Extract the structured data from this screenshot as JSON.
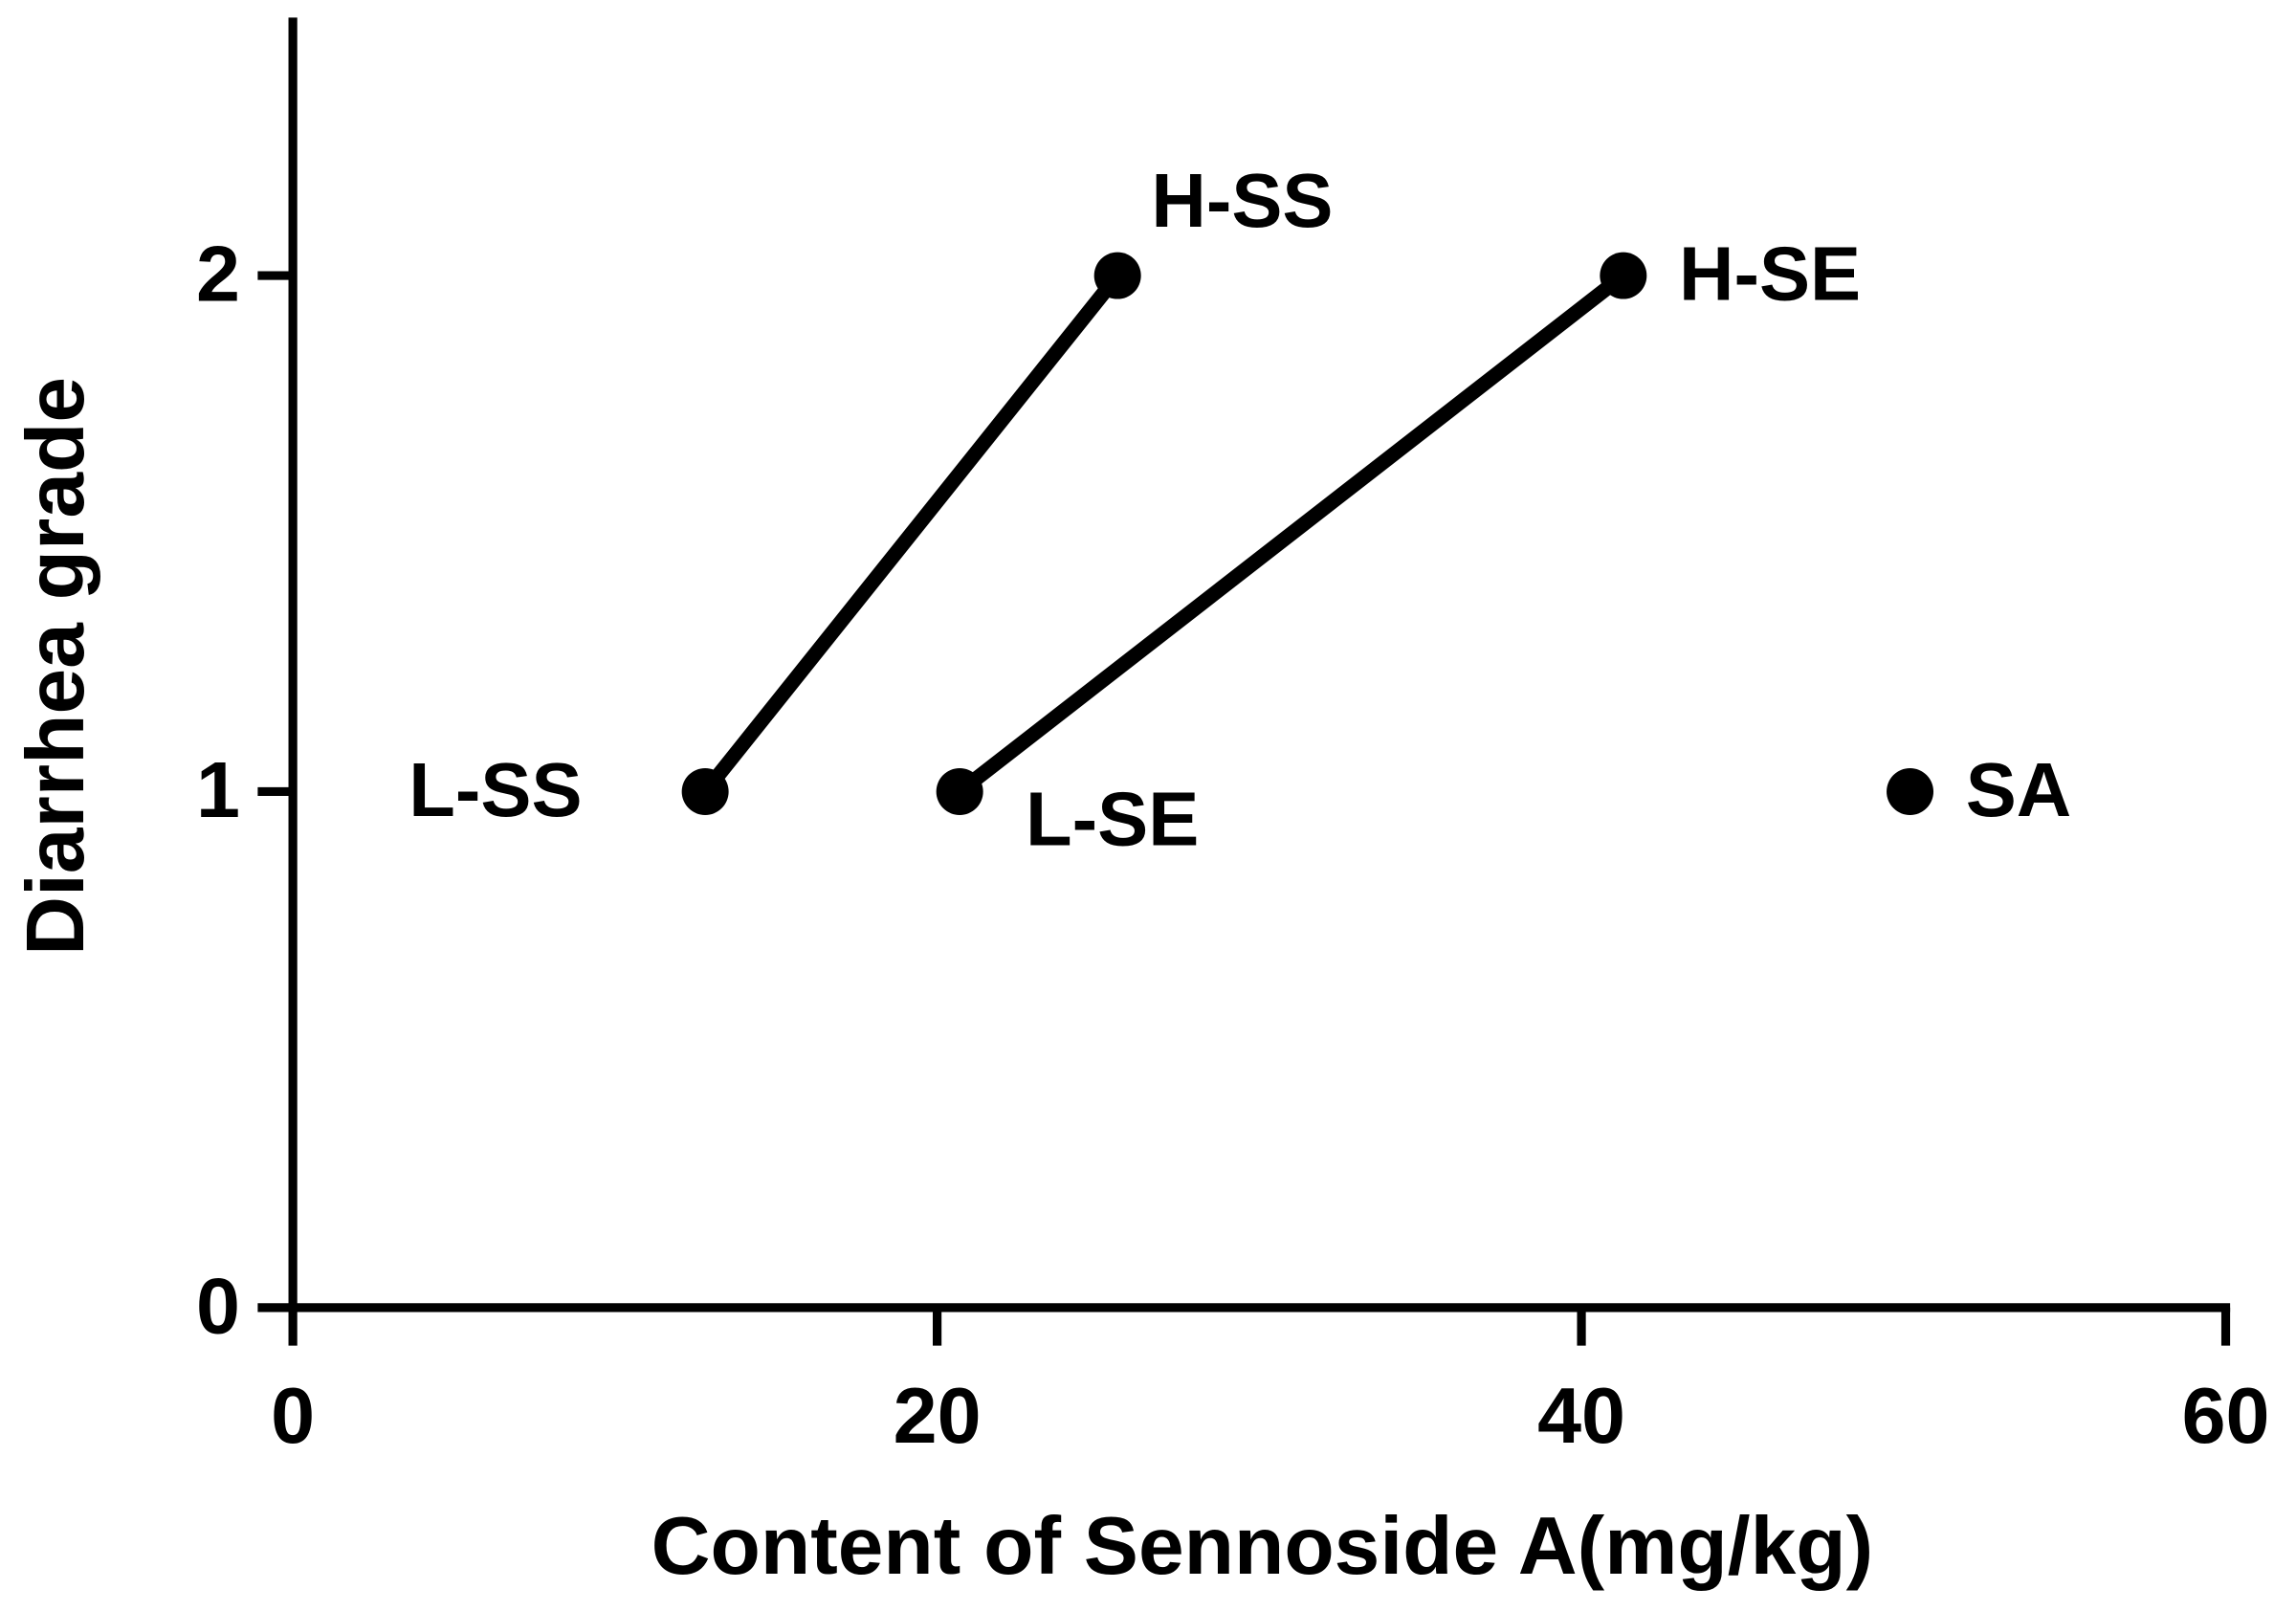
{
  "chart_data": {
    "type": "scatter",
    "x_label": "Content of Sennoside A(mg/kg)",
    "y_label": "Diarrhea grade",
    "xlim": [
      0,
      60
    ],
    "xticks": [
      0,
      20,
      40,
      60
    ],
    "ylim": [
      0,
      2.5
    ],
    "yticks": [
      0,
      1,
      2
    ],
    "color": "#000000",
    "series": [
      {
        "x": [
          12.8,
          25.6
        ],
        "values": [
          1,
          2
        ],
        "labels": [
          "L-SS",
          "H-SS"
        ]
      },
      {
        "x": [
          20.7,
          41.3
        ],
        "values": [
          1,
          2
        ],
        "labels": [
          "L-SE",
          "H-SE"
        ]
      },
      {
        "x": [
          50.2
        ],
        "values": [
          1
        ],
        "labels": [
          "SA"
        ]
      }
    ]
  }
}
